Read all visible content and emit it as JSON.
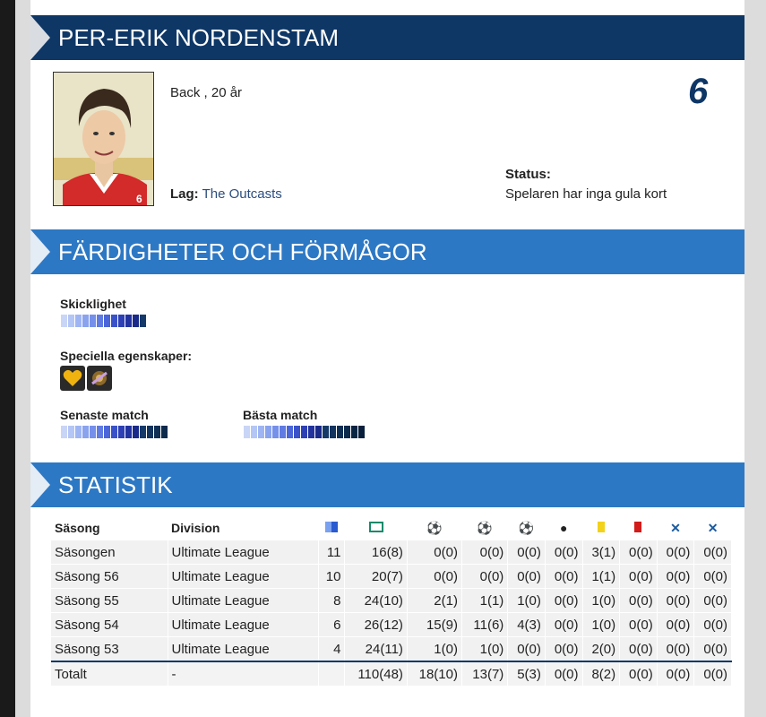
{
  "player": {
    "name": "PER-ERIK NORDENSTAM",
    "position_age": "Back , 20 år",
    "number": "6",
    "team_label": "Lag:",
    "team_name": "The Outcasts",
    "status_label": "Status:",
    "status_value": "Spelaren har inga gula kort",
    "portrait_jersey_number": "6"
  },
  "skills": {
    "title": "FÄRDIGHETER OCH FÖRMÅGOR",
    "skill_label": "Skicklighet",
    "skill_level": 0.5,
    "special_label": "Speciella egenskaper:",
    "special_icons": [
      "heart-icon",
      "gear-badge-icon"
    ],
    "latest_match_label": "Senaste match",
    "latest_match_level": 0.6,
    "best_match_label": "Bästa match",
    "best_match_level": 0.65
  },
  "stats": {
    "title": "STATISTIK",
    "columns": {
      "season": "Säsong",
      "division": "Division",
      "icons": [
        "matches-icon",
        "goal-keeper-icon",
        "goals-multi-icon",
        "goal-icon",
        "goal-small-icon",
        "ball-dark-icon",
        "yellow-card-icon",
        "red-card-icon",
        "cross-icon",
        "cross-extra-icon"
      ]
    },
    "rows": [
      {
        "season": "Säsongen",
        "division": "Ultimate League",
        "values": [
          "11",
          "16(8)",
          "0(0)",
          "0(0)",
          "0(0)",
          "0(0)",
          "3(1)",
          "0(0)",
          "0(0)",
          "0(0)"
        ]
      },
      {
        "season": "Säsong 56",
        "division": "Ultimate League",
        "values": [
          "10",
          "20(7)",
          "0(0)",
          "0(0)",
          "0(0)",
          "0(0)",
          "1(1)",
          "0(0)",
          "0(0)",
          "0(0)"
        ]
      },
      {
        "season": "Säsong 55",
        "division": "Ultimate League",
        "values": [
          "8",
          "24(10)",
          "2(1)",
          "1(1)",
          "1(0)",
          "0(0)",
          "1(0)",
          "0(0)",
          "0(0)",
          "0(0)"
        ]
      },
      {
        "season": "Säsong 54",
        "division": "Ultimate League",
        "values": [
          "6",
          "26(12)",
          "15(9)",
          "11(6)",
          "4(3)",
          "0(0)",
          "1(0)",
          "0(0)",
          "0(0)",
          "0(0)"
        ]
      },
      {
        "season": "Säsong 53",
        "division": "Ultimate League",
        "values": [
          "4",
          "24(11)",
          "1(0)",
          "1(0)",
          "0(0)",
          "0(0)",
          "2(0)",
          "0(0)",
          "0(0)",
          "0(0)"
        ]
      }
    ],
    "total": {
      "season": "Totalt",
      "division": "-",
      "values": [
        "",
        "110(48)",
        "18(10)",
        "13(7)",
        "5(3)",
        "0(0)",
        "8(2)",
        "0(0)",
        "0(0)",
        "0(0)"
      ]
    }
  },
  "colors": {
    "header_dark": "#0e3766",
    "header_light": "#2d78c4",
    "link": "#2b4d7e"
  }
}
